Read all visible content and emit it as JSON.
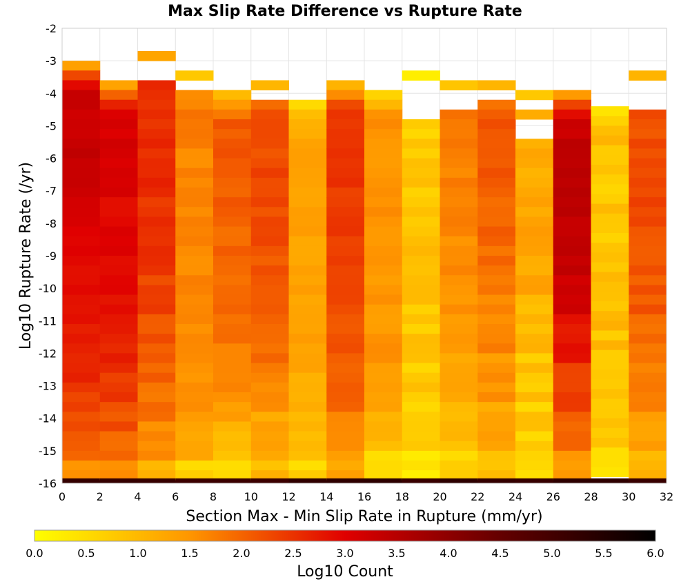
{
  "chart_data": {
    "type": "heatmap",
    "title": "Max Slip Rate Difference vs Rupture Rate",
    "xlabel": "Section Max - Min Slip Rate in Rupture (mm/yr)",
    "ylabel": "Log10 Rupture Rate (/yr)",
    "xlim": [
      0,
      32
    ],
    "ylim": [
      -16,
      -2
    ],
    "x_ticks": [
      "0",
      "2",
      "4",
      "6",
      "8",
      "10",
      "12",
      "14",
      "16",
      "18",
      "20",
      "22",
      "24",
      "26",
      "28",
      "30",
      "32"
    ],
    "y_ticks": [
      "-2",
      "-3",
      "-4",
      "-5",
      "-6",
      "-7",
      "-8",
      "-9",
      "-10",
      "-11",
      "-12",
      "-13",
      "-14",
      "-15",
      "-16"
    ],
    "grid": true,
    "x_bin_width": 2,
    "y_bin_height": 0.3,
    "colorbar": {
      "label": "Log10 Count",
      "min": 0.0,
      "max": 6.0,
      "ticks": [
        "0.0",
        "0.5",
        "1.0",
        "1.5",
        "2.0",
        "2.5",
        "3.0",
        "3.5",
        "4.0",
        "4.5",
        "5.0",
        "5.5",
        "6.0"
      ],
      "colors": [
        "#ffff00",
        "#ff8000",
        "#e00000",
        "#600000",
        "#000000"
      ],
      "position": "bottom"
    },
    "column_x_starts": [
      0,
      2,
      4,
      6,
      8,
      10,
      12,
      14,
      16,
      18,
      20,
      22,
      24,
      26,
      28,
      30
    ],
    "columns": [
      {
        "min_rate": -3.0,
        "base": [
          3.2,
          3.25,
          3.3,
          3.3,
          3.2,
          3.1,
          3.0,
          2.9,
          2.85,
          2.85,
          2.7,
          2.6,
          2.4,
          2.2,
          2.0,
          1.6
        ],
        "jitter": 0.12
      },
      {
        "min_rate": -3.6,
        "base": [
          3.0,
          3.1,
          3.15,
          3.15,
          3.1,
          3.0,
          2.95,
          2.9,
          2.85,
          2.8,
          2.6,
          2.4,
          2.2,
          2.0,
          1.6
        ],
        "jitter": 0.15
      },
      {
        "min_rate": -2.7,
        "min2_gap": [
          -3.0,
          -3.6
        ],
        "base": [
          2.5,
          2.5,
          2.55,
          2.55,
          2.5,
          2.45,
          2.35,
          2.2,
          2.0,
          1.9,
          1.6,
          1.1
        ],
        "jitter": 0.15
      },
      {
        "min_rate": -3.3,
        "min2_gap": [
          -3.6,
          -3.9
        ],
        "base": [
          1.7,
          1.75,
          1.7,
          1.65,
          1.65,
          1.6,
          1.6,
          1.55,
          1.55,
          1.5,
          1.5,
          1.3,
          0.6
        ],
        "jitter": 0.15
      },
      {
        "min_rate": -3.9,
        "base": [
          2.0,
          2.05,
          2.1,
          2.1,
          2.05,
          2.0,
          1.95,
          1.9,
          1.8,
          1.7,
          1.4,
          1.0,
          0.6
        ],
        "jitter": 0.15
      },
      {
        "min_rate": -3.6,
        "min2_gap": [
          -3.9,
          -4.2
        ],
        "base": [
          2.1,
          2.2,
          2.25,
          2.25,
          2.2,
          2.15,
          2.05,
          1.9,
          1.7,
          1.3,
          1.0
        ],
        "jitter": 0.15
      },
      {
        "min_rate": -4.2,
        "base": [
          1.1,
          1.2,
          1.3,
          1.35,
          1.35,
          1.35,
          1.3,
          1.3,
          1.2,
          1.0,
          0.6
        ],
        "jitter": 0.15
      },
      {
        "min_rate": -3.6,
        "base": [
          2.35,
          2.4,
          2.45,
          2.45,
          2.4,
          2.3,
          2.15,
          2.0,
          1.7,
          1.3
        ],
        "jitter": 0.12
      },
      {
        "min_rate": -3.9,
        "base": [
          1.5,
          1.55,
          1.55,
          1.6,
          1.55,
          1.5,
          1.5,
          1.4,
          1.0,
          0.5
        ],
        "jitter": 0.15
      },
      {
        "min_rate": -3.3,
        "min2_gap": [
          -3.6,
          -4.7
        ],
        "base": [
          0.7,
          0.75,
          0.8,
          0.8,
          0.85,
          0.8,
          0.75,
          0.65,
          0.4
        ],
        "jitter": 0.2
      },
      {
        "min_rate": -3.6,
        "min2_gap": [
          -3.9,
          -4.4
        ],
        "base": [
          1.8,
          1.75,
          1.7,
          1.65,
          1.6,
          1.5,
          1.3,
          1.0,
          0.6
        ],
        "jitter": 0.15
      },
      {
        "min_rate": -3.6,
        "min2_gap": [
          -3.9,
          -4.1
        ],
        "base": [
          2.2,
          2.15,
          2.1,
          2.0,
          1.9,
          1.7,
          1.5,
          1.3,
          0.9
        ],
        "jitter": 0.15
      },
      {
        "min_rate": -3.9,
        "min2_gap": [
          -4.2,
          -4.4
        ],
        "min3_gap": [
          -4.7,
          -5.3
        ],
        "base": [
          1.2,
          1.25,
          1.3,
          1.25,
          1.2,
          1.1,
          0.9,
          0.7,
          0.4
        ],
        "jitter": 0.25
      },
      {
        "min_rate": -3.9,
        "base": [
          3.2,
          3.3,
          3.4,
          3.4,
          3.35,
          3.2,
          2.8,
          2.4,
          2.0,
          1.4
        ],
        "jitter": 0.1
      },
      {
        "min_rate": -4.4,
        "base": [
          0.8,
          0.85,
          0.8,
          0.85,
          0.9,
          0.9,
          0.85,
          0.7,
          0.4
        ],
        "jitter": 0.25
      },
      {
        "min_rate": -3.3,
        "min2_gap": [
          -3.6,
          -4.4
        ],
        "base": [
          2.2,
          2.25,
          2.3,
          2.3,
          2.2,
          2.1,
          1.9,
          1.7,
          1.4,
          1.0
        ],
        "jitter": 0.15
      }
    ]
  }
}
